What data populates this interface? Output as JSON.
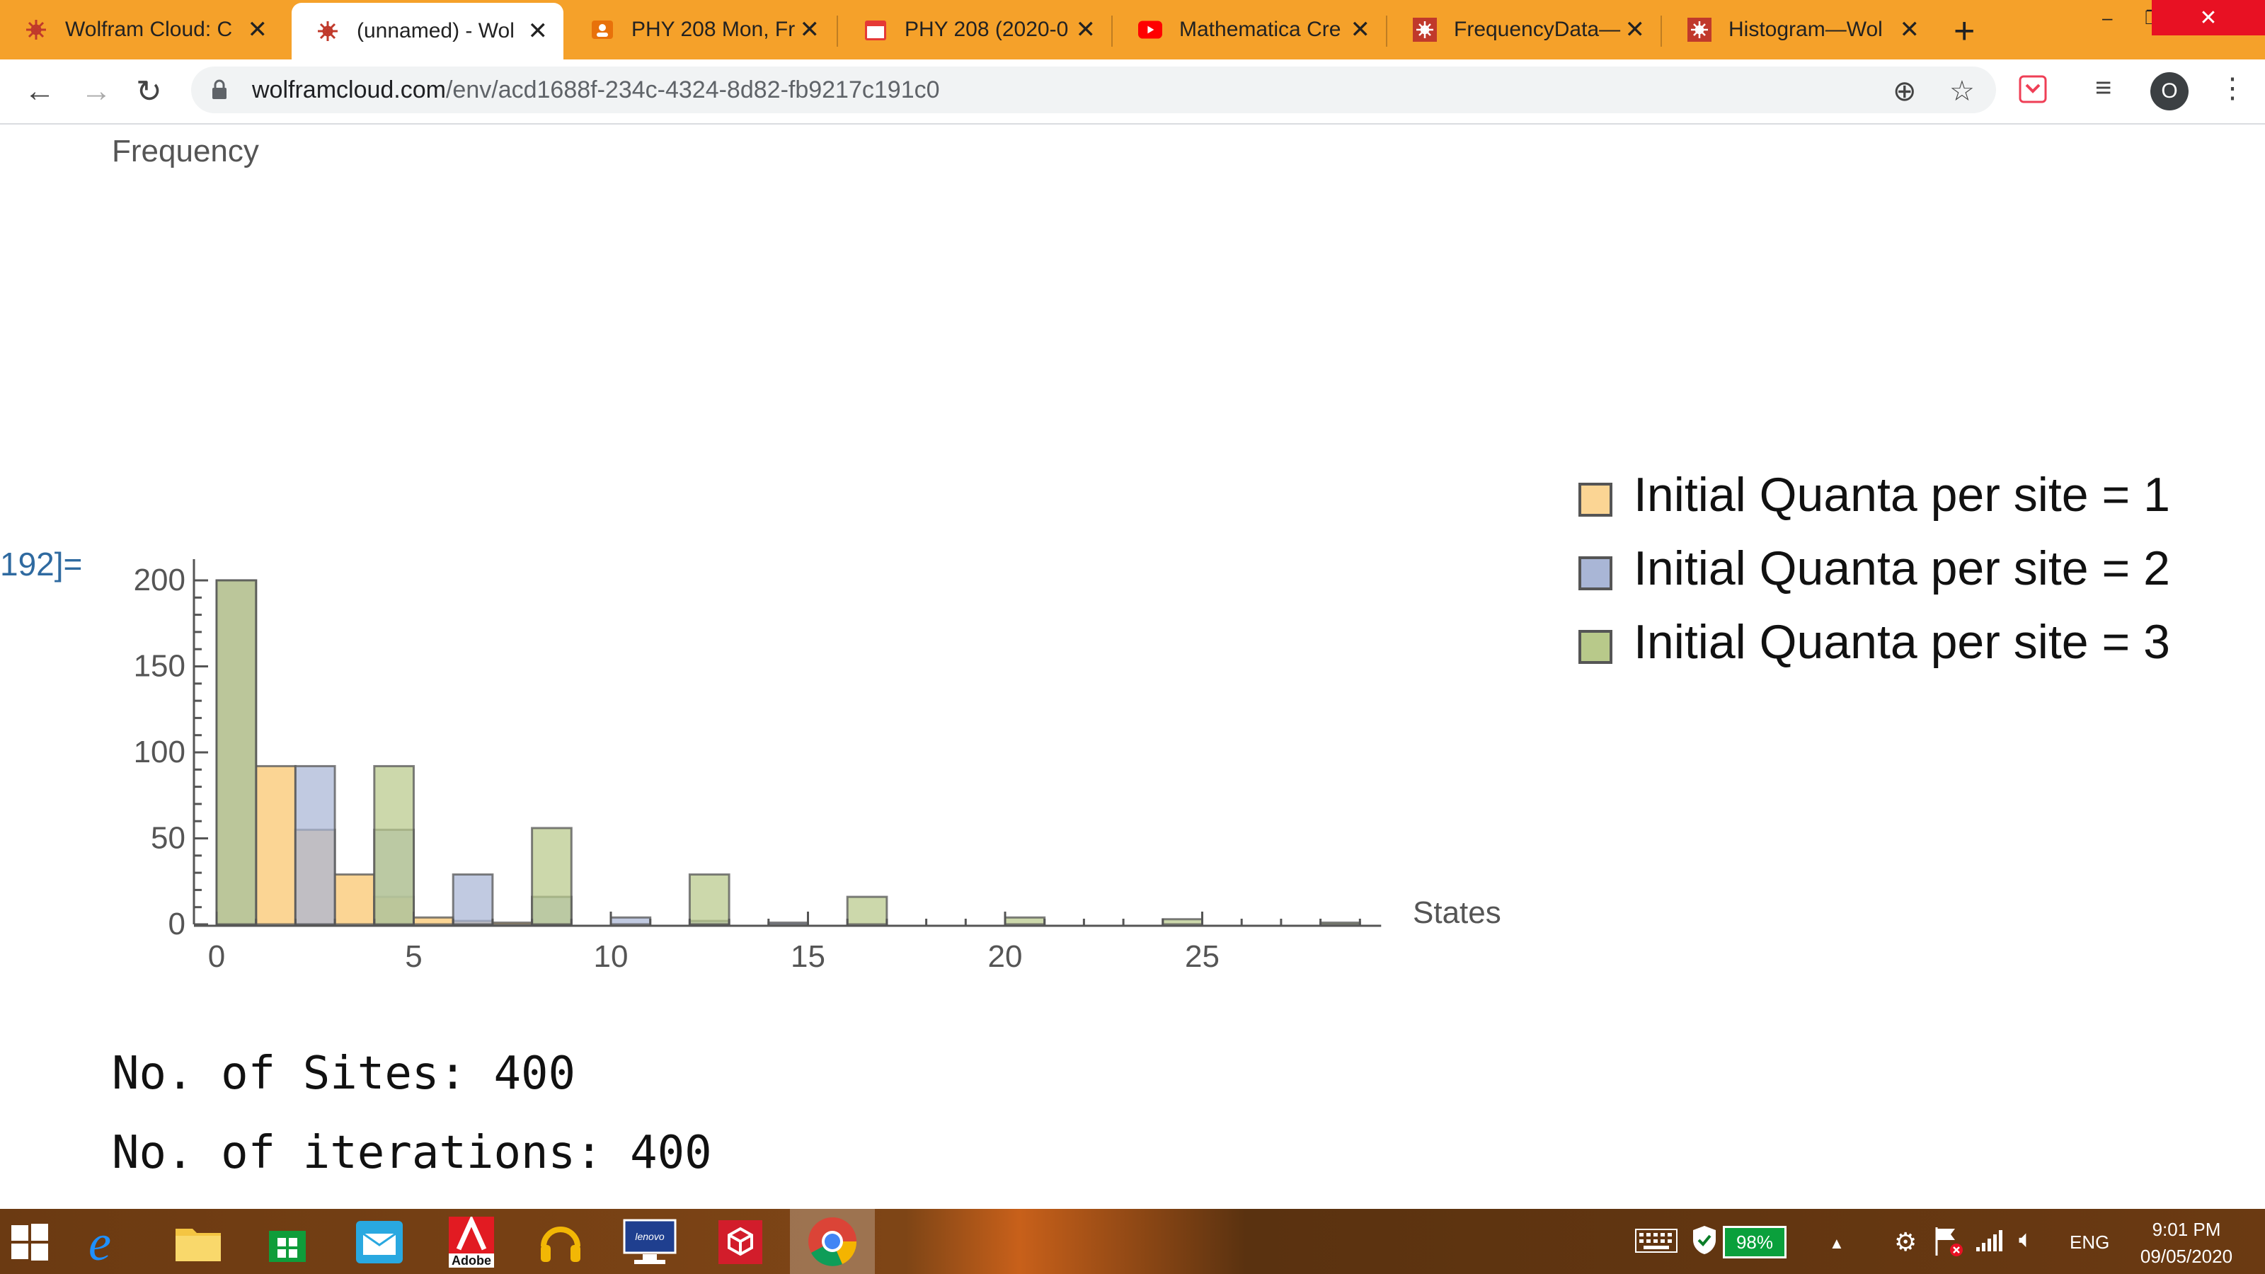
{
  "tabs": [
    {
      "title": "Wolfram Cloud: C",
      "icon": "wolfram-icon",
      "active": false
    },
    {
      "title": "(unnamed) - Wol",
      "icon": "wolfram-icon",
      "active": true
    },
    {
      "title": "PHY 208 Mon, Fr",
      "icon": "meet-icon",
      "active": false
    },
    {
      "title": "PHY 208 (2020-0",
      "icon": "calendar-icon",
      "active": false
    },
    {
      "title": "Mathematica Cre",
      "icon": "youtube-icon",
      "active": false
    },
    {
      "title": "FrequencyData—",
      "icon": "wolfram-icon",
      "active": false
    },
    {
      "title": "Histogram—Wol",
      "icon": "wolfram-icon",
      "active": false
    }
  ],
  "new_tab_label": "+",
  "toolbar": {
    "url_host": "wolframcloud.com",
    "url_path": "/env/acd1688f-234c-4324-8d82-fb9217c191c0",
    "profile_initial": "O"
  },
  "notebook": {
    "output_label": "192]=",
    "sites_line": "No. of Sites: 400",
    "iterations_line": "No. of iterations: 400"
  },
  "colors": {
    "series1": "#fbd594",
    "series2": "#a9b6d6",
    "series3": "#b8c98a",
    "overlap": "#8fa35a",
    "tab_strip": "#f5a12a"
  },
  "chart_data": {
    "type": "bar",
    "ylabel": "Frequency",
    "xlabel": "States",
    "xlim": [
      0,
      29
    ],
    "ylim": [
      0,
      200
    ],
    "x_ticks": [
      0,
      5,
      10,
      15,
      20,
      25
    ],
    "y_ticks": [
      0,
      50,
      100,
      150,
      200
    ],
    "legend_position": "right",
    "bin_width": 1,
    "series": [
      {
        "name": "Initial Quanta per site = 1",
        "bins": [
          [
            0,
            200
          ],
          [
            1,
            92
          ],
          [
            2,
            55
          ],
          [
            3,
            29
          ],
          [
            4,
            16
          ],
          [
            5,
            4
          ],
          [
            6,
            2
          ],
          [
            7,
            1
          ],
          [
            8,
            0
          ]
        ]
      },
      {
        "name": "Initial Quanta per site = 2",
        "bins": [
          [
            0,
            200
          ],
          [
            2,
            92
          ],
          [
            4,
            55
          ],
          [
            6,
            29
          ],
          [
            8,
            16
          ],
          [
            10,
            4
          ],
          [
            12,
            2
          ],
          [
            14,
            1
          ]
        ]
      },
      {
        "name": "Initial Quanta per site = 3",
        "bins": [
          [
            0,
            200
          ],
          [
            4,
            92
          ],
          [
            8,
            56
          ],
          [
            12,
            29
          ],
          [
            16,
            16
          ],
          [
            20,
            4
          ],
          [
            24,
            3
          ],
          [
            28,
            1
          ]
        ]
      }
    ],
    "zero_ticks_x": [
      2,
      3,
      4,
      5,
      6,
      7,
      8,
      9,
      10,
      11,
      12,
      13,
      14,
      15,
      16,
      17,
      18,
      19,
      20,
      21,
      22,
      23,
      24,
      25,
      26,
      27,
      28
    ]
  },
  "taskbar": {
    "battery": "98%",
    "language": "ENG",
    "time": "9:01 PM",
    "date": "09/05/2020",
    "apps": [
      "start-icon",
      "edge-icon",
      "file-explorer-icon",
      "store-icon",
      "mail-icon",
      "adobe-icon",
      "headphones-icon",
      "lenovo-icon",
      "cube-icon",
      "chrome-icon"
    ],
    "adobe_label": "Adobe",
    "lenovo_label": "lenovo"
  }
}
